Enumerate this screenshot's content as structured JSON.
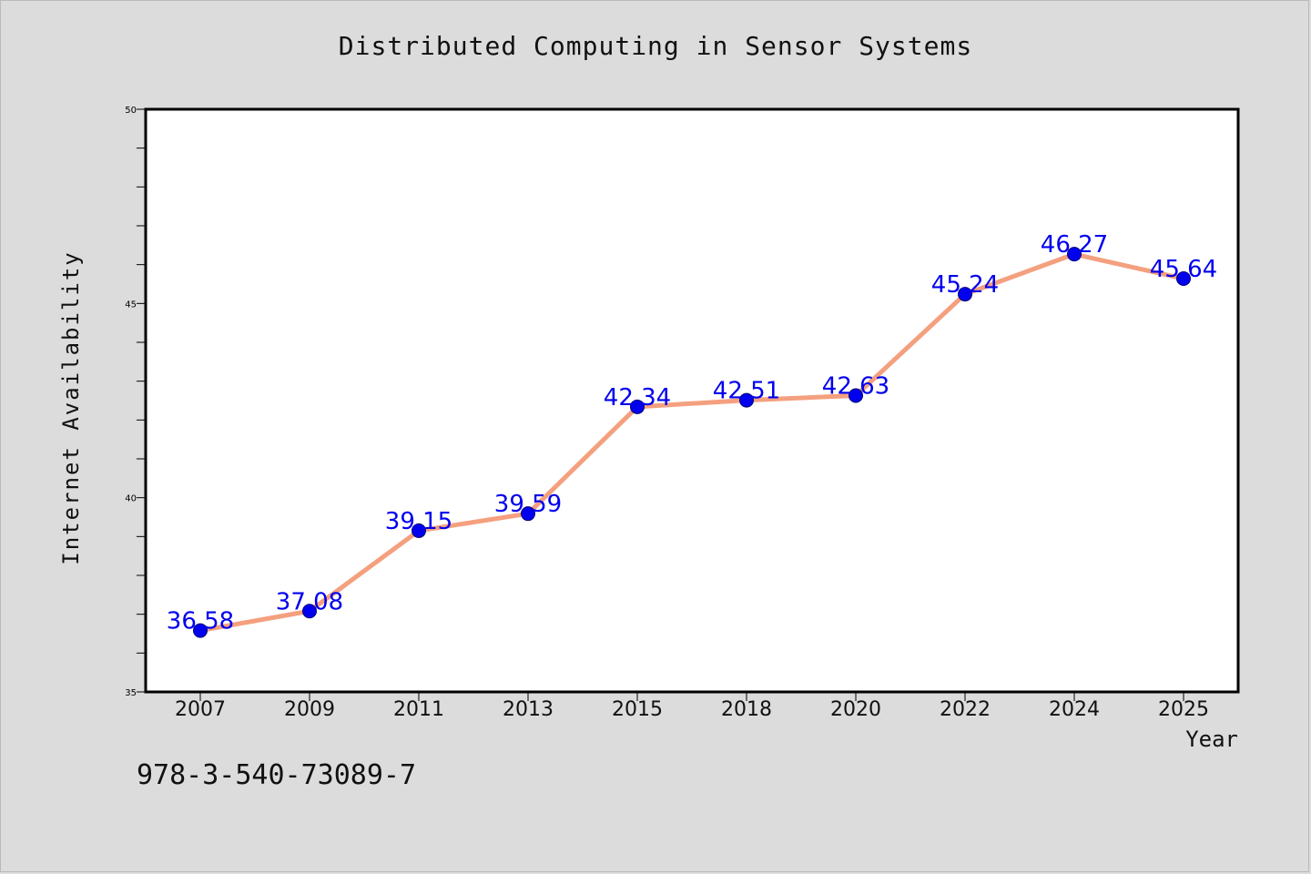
{
  "title": "Distributed Computing in Sensor Systems",
  "footer_code": "978-3-540-73089-7",
  "colors": {
    "background": "#dcdcdc",
    "plot_background": "#ffffff",
    "line": "#f4a07f",
    "marker": "#0000ee",
    "label": "#0000ee"
  },
  "chart_data": {
    "type": "line",
    "title": "Distributed Computing in Sensor Systems",
    "xlabel": "Year",
    "ylabel": "Internet Availability",
    "categories": [
      "2007",
      "2009",
      "2011",
      "2013",
      "2015",
      "2018",
      "2020",
      "2022",
      "2024",
      "2025"
    ],
    "series": [
      {
        "values": [
          36.58,
          37.08,
          39.15,
          39.59,
          42.34,
          42.51,
          42.63,
          45.24,
          46.27,
          45.64
        ],
        "labels": [
          "36.58",
          "37.08",
          "39.15",
          "39.59",
          "42.34",
          "42.51",
          "42.63",
          "45.24",
          "46.27",
          "45.64"
        ]
      }
    ],
    "ylim": [
      35,
      50
    ],
    "yticks_major": [
      35,
      40,
      45,
      50
    ],
    "yticks_minor_step": 1,
    "grid": false,
    "legend": "none"
  }
}
